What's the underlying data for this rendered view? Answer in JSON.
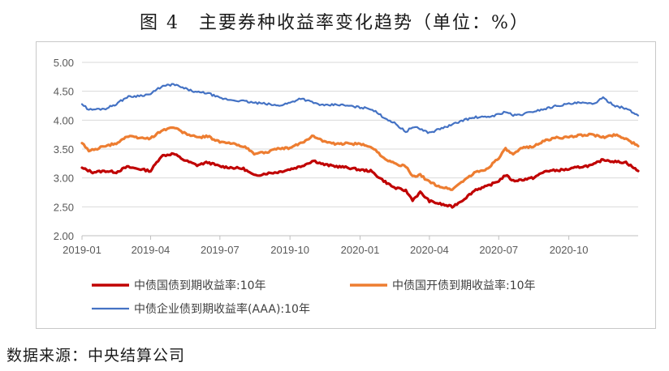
{
  "title": "图 4　主要券种收益率变化趋势（单位：%）",
  "source": "数据来源：中央结算公司",
  "chart_data": {
    "type": "line",
    "title": "图 4　主要券种收益率变化趋势（单位：%）",
    "xlabel": "",
    "ylabel": "",
    "ylim": [
      2.0,
      5.0
    ],
    "xlim": [
      "2019-01-01",
      "2020-12-31"
    ],
    "yticks": [
      "5.00",
      "4.50",
      "4.00",
      "3.50",
      "3.00",
      "2.50",
      "2.00"
    ],
    "xticks": [
      {
        "date": "2019-01-01",
        "label": "2019-01"
      },
      {
        "date": "2019-04-01",
        "label": "2019-04"
      },
      {
        "date": "2019-07-01",
        "label": "2019-07"
      },
      {
        "date": "2019-10-01",
        "label": "2019-10"
      },
      {
        "date": "2020-01-01",
        "label": "2020-01"
      },
      {
        "date": "2020-04-01",
        "label": "2020-04"
      },
      {
        "date": "2020-07-01",
        "label": "2020-07"
      },
      {
        "date": "2020-10-01",
        "label": "2020-10"
      }
    ],
    "grid": "horizontal",
    "legend": "bottom",
    "series": [
      {
        "name": "中债国债到期收益率:10年",
        "color": "#c00000",
        "points": [
          [
            "2019-01-01",
            3.17
          ],
          [
            "2019-01-15",
            3.1
          ],
          [
            "2019-02-01",
            3.12
          ],
          [
            "2019-02-15",
            3.1
          ],
          [
            "2019-03-01",
            3.19
          ],
          [
            "2019-03-15",
            3.16
          ],
          [
            "2019-04-01",
            3.12
          ],
          [
            "2019-04-15",
            3.38
          ],
          [
            "2019-05-01",
            3.42
          ],
          [
            "2019-05-15",
            3.31
          ],
          [
            "2019-06-01",
            3.22
          ],
          [
            "2019-06-15",
            3.27
          ],
          [
            "2019-07-01",
            3.2
          ],
          [
            "2019-07-15",
            3.18
          ],
          [
            "2019-08-01",
            3.16
          ],
          [
            "2019-08-15",
            3.04
          ],
          [
            "2019-09-01",
            3.08
          ],
          [
            "2019-09-15",
            3.1
          ],
          [
            "2019-10-01",
            3.15
          ],
          [
            "2019-10-15",
            3.2
          ],
          [
            "2019-11-01",
            3.3
          ],
          [
            "2019-11-15",
            3.23
          ],
          [
            "2019-12-01",
            3.2
          ],
          [
            "2019-12-15",
            3.18
          ],
          [
            "2020-01-01",
            3.14
          ],
          [
            "2020-01-15",
            3.12
          ],
          [
            "2020-02-01",
            2.95
          ],
          [
            "2020-02-15",
            2.83
          ],
          [
            "2020-03-01",
            2.78
          ],
          [
            "2020-03-10",
            2.62
          ],
          [
            "2020-03-20",
            2.75
          ],
          [
            "2020-04-01",
            2.6
          ],
          [
            "2020-04-15",
            2.55
          ],
          [
            "2020-05-01",
            2.5
          ],
          [
            "2020-05-15",
            2.62
          ],
          [
            "2020-06-01",
            2.8
          ],
          [
            "2020-06-15",
            2.85
          ],
          [
            "2020-07-01",
            2.95
          ],
          [
            "2020-07-10",
            3.05
          ],
          [
            "2020-07-20",
            2.95
          ],
          [
            "2020-08-01",
            2.97
          ],
          [
            "2020-08-15",
            3.0
          ],
          [
            "2020-09-01",
            3.12
          ],
          [
            "2020-09-15",
            3.13
          ],
          [
            "2020-10-01",
            3.15
          ],
          [
            "2020-10-15",
            3.19
          ],
          [
            "2020-11-01",
            3.22
          ],
          [
            "2020-11-15",
            3.32
          ],
          [
            "2020-12-01",
            3.28
          ],
          [
            "2020-12-15",
            3.27
          ],
          [
            "2020-12-31",
            3.12
          ]
        ]
      },
      {
        "name": "中债国开债到期收益率:10年",
        "color": "#ed7d31",
        "points": [
          [
            "2019-01-01",
            3.6
          ],
          [
            "2019-01-10",
            3.47
          ],
          [
            "2019-02-01",
            3.55
          ],
          [
            "2019-02-15",
            3.6
          ],
          [
            "2019-03-01",
            3.72
          ],
          [
            "2019-03-15",
            3.7
          ],
          [
            "2019-04-01",
            3.68
          ],
          [
            "2019-04-15",
            3.82
          ],
          [
            "2019-05-01",
            3.88
          ],
          [
            "2019-05-15",
            3.78
          ],
          [
            "2019-06-01",
            3.7
          ],
          [
            "2019-06-15",
            3.72
          ],
          [
            "2019-07-01",
            3.62
          ],
          [
            "2019-07-15",
            3.6
          ],
          [
            "2019-08-01",
            3.55
          ],
          [
            "2019-08-15",
            3.42
          ],
          [
            "2019-09-01",
            3.45
          ],
          [
            "2019-09-15",
            3.5
          ],
          [
            "2019-10-01",
            3.52
          ],
          [
            "2019-10-15",
            3.6
          ],
          [
            "2019-11-01",
            3.73
          ],
          [
            "2019-11-15",
            3.63
          ],
          [
            "2019-12-01",
            3.58
          ],
          [
            "2019-12-15",
            3.6
          ],
          [
            "2020-01-01",
            3.58
          ],
          [
            "2020-01-15",
            3.55
          ],
          [
            "2020-02-01",
            3.35
          ],
          [
            "2020-02-15",
            3.25
          ],
          [
            "2020-03-01",
            3.2
          ],
          [
            "2020-03-10",
            3.02
          ],
          [
            "2020-03-20",
            3.05
          ],
          [
            "2020-04-01",
            2.93
          ],
          [
            "2020-04-15",
            2.85
          ],
          [
            "2020-05-01",
            2.8
          ],
          [
            "2020-05-15",
            2.95
          ],
          [
            "2020-06-01",
            3.1
          ],
          [
            "2020-06-15",
            3.15
          ],
          [
            "2020-07-01",
            3.35
          ],
          [
            "2020-07-10",
            3.5
          ],
          [
            "2020-07-20",
            3.4
          ],
          [
            "2020-08-01",
            3.52
          ],
          [
            "2020-08-15",
            3.55
          ],
          [
            "2020-09-01",
            3.65
          ],
          [
            "2020-09-15",
            3.7
          ],
          [
            "2020-10-01",
            3.7
          ],
          [
            "2020-10-15",
            3.74
          ],
          [
            "2020-11-01",
            3.75
          ],
          [
            "2020-11-15",
            3.7
          ],
          [
            "2020-12-01",
            3.75
          ],
          [
            "2020-12-15",
            3.68
          ],
          [
            "2020-12-31",
            3.55
          ]
        ]
      },
      {
        "name": "中债企业债到期收益率(AAA):10年",
        "color": "#4472c4",
        "points": [
          [
            "2019-01-01",
            4.28
          ],
          [
            "2019-01-10",
            4.18
          ],
          [
            "2019-02-01",
            4.2
          ],
          [
            "2019-02-15",
            4.28
          ],
          [
            "2019-03-01",
            4.4
          ],
          [
            "2019-03-15",
            4.42
          ],
          [
            "2019-04-01",
            4.45
          ],
          [
            "2019-04-15",
            4.58
          ],
          [
            "2019-05-01",
            4.62
          ],
          [
            "2019-05-15",
            4.55
          ],
          [
            "2019-06-01",
            4.48
          ],
          [
            "2019-06-15",
            4.47
          ],
          [
            "2019-07-01",
            4.38
          ],
          [
            "2019-07-15",
            4.35
          ],
          [
            "2019-08-01",
            4.33
          ],
          [
            "2019-08-15",
            4.3
          ],
          [
            "2019-09-01",
            4.28
          ],
          [
            "2019-09-15",
            4.25
          ],
          [
            "2019-10-01",
            4.3
          ],
          [
            "2019-10-15",
            4.38
          ],
          [
            "2019-11-01",
            4.3
          ],
          [
            "2019-11-15",
            4.25
          ],
          [
            "2019-12-01",
            4.27
          ],
          [
            "2019-12-15",
            4.25
          ],
          [
            "2020-01-01",
            4.22
          ],
          [
            "2020-01-15",
            4.2
          ],
          [
            "2020-02-01",
            4.05
          ],
          [
            "2020-02-15",
            3.95
          ],
          [
            "2020-03-01",
            3.8
          ],
          [
            "2020-03-10",
            3.88
          ],
          [
            "2020-03-20",
            3.85
          ],
          [
            "2020-04-01",
            3.78
          ],
          [
            "2020-04-15",
            3.85
          ],
          [
            "2020-05-01",
            3.92
          ],
          [
            "2020-05-15",
            4.0
          ],
          [
            "2020-06-01",
            4.05
          ],
          [
            "2020-06-15",
            4.05
          ],
          [
            "2020-07-01",
            4.1
          ],
          [
            "2020-07-10",
            4.15
          ],
          [
            "2020-07-20",
            4.08
          ],
          [
            "2020-08-01",
            4.1
          ],
          [
            "2020-08-15",
            4.15
          ],
          [
            "2020-09-01",
            4.2
          ],
          [
            "2020-09-15",
            4.25
          ],
          [
            "2020-10-01",
            4.28
          ],
          [
            "2020-10-15",
            4.3
          ],
          [
            "2020-11-01",
            4.28
          ],
          [
            "2020-11-15",
            4.38
          ],
          [
            "2020-12-01",
            4.25
          ],
          [
            "2020-12-15",
            4.2
          ],
          [
            "2020-12-31",
            4.08
          ]
        ]
      }
    ]
  }
}
